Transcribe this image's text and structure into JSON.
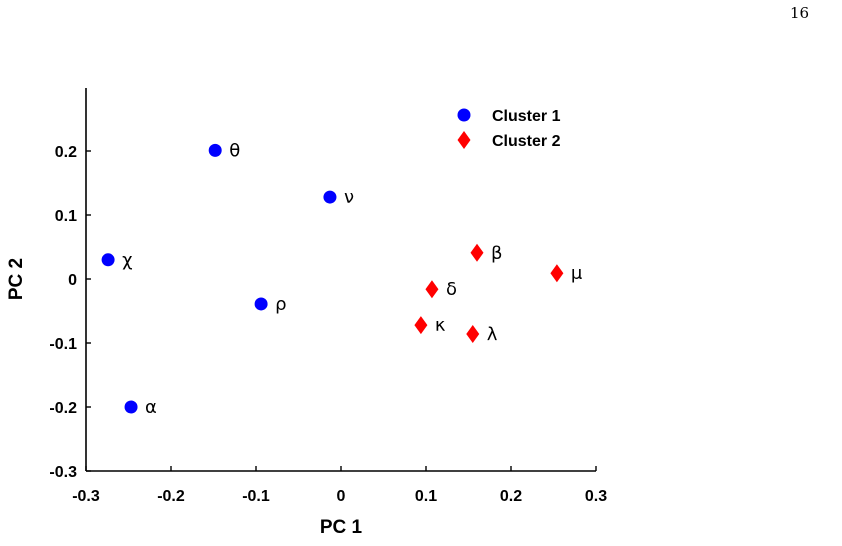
{
  "page": {
    "number": "16"
  },
  "chart_data": {
    "type": "scatter",
    "title": "",
    "xlabel": "PC 1",
    "ylabel": "PC 2",
    "xlim": [
      -0.3,
      0.3
    ],
    "ylim": [
      -0.3,
      0.25
    ],
    "x_ticks": [
      "-0.3",
      "-0.2",
      "-0.1",
      "0",
      "0.1",
      "0.2",
      "0.3"
    ],
    "y_ticks": [
      "-0.3",
      "-0.2",
      "-0.1",
      "0",
      "0.1",
      "0.2"
    ],
    "grid": false,
    "legend_position": "top-right",
    "series": [
      {
        "name": "Cluster 1",
        "marker": "circle",
        "color": "#0000ff",
        "points": [
          {
            "label": "θ",
            "x": -0.148,
            "y": 0.201
          },
          {
            "label": "ν",
            "x": -0.013,
            "y": 0.128
          },
          {
            "label": "χ",
            "x": -0.274,
            "y": 0.03
          },
          {
            "label": "ρ",
            "x": -0.094,
            "y": -0.039
          },
          {
            "label": "α",
            "x": -0.247,
            "y": -0.2
          }
        ]
      },
      {
        "name": "Cluster 2",
        "marker": "diamond",
        "color": "#ff0000",
        "points": [
          {
            "label": "β",
            "x": 0.16,
            "y": 0.041
          },
          {
            "label": "μ",
            "x": 0.254,
            "y": 0.009
          },
          {
            "label": "δ",
            "x": 0.107,
            "y": -0.016
          },
          {
            "label": "κ",
            "x": 0.094,
            "y": -0.072
          },
          {
            "label": "λ",
            "x": 0.155,
            "y": -0.086
          }
        ]
      }
    ]
  }
}
